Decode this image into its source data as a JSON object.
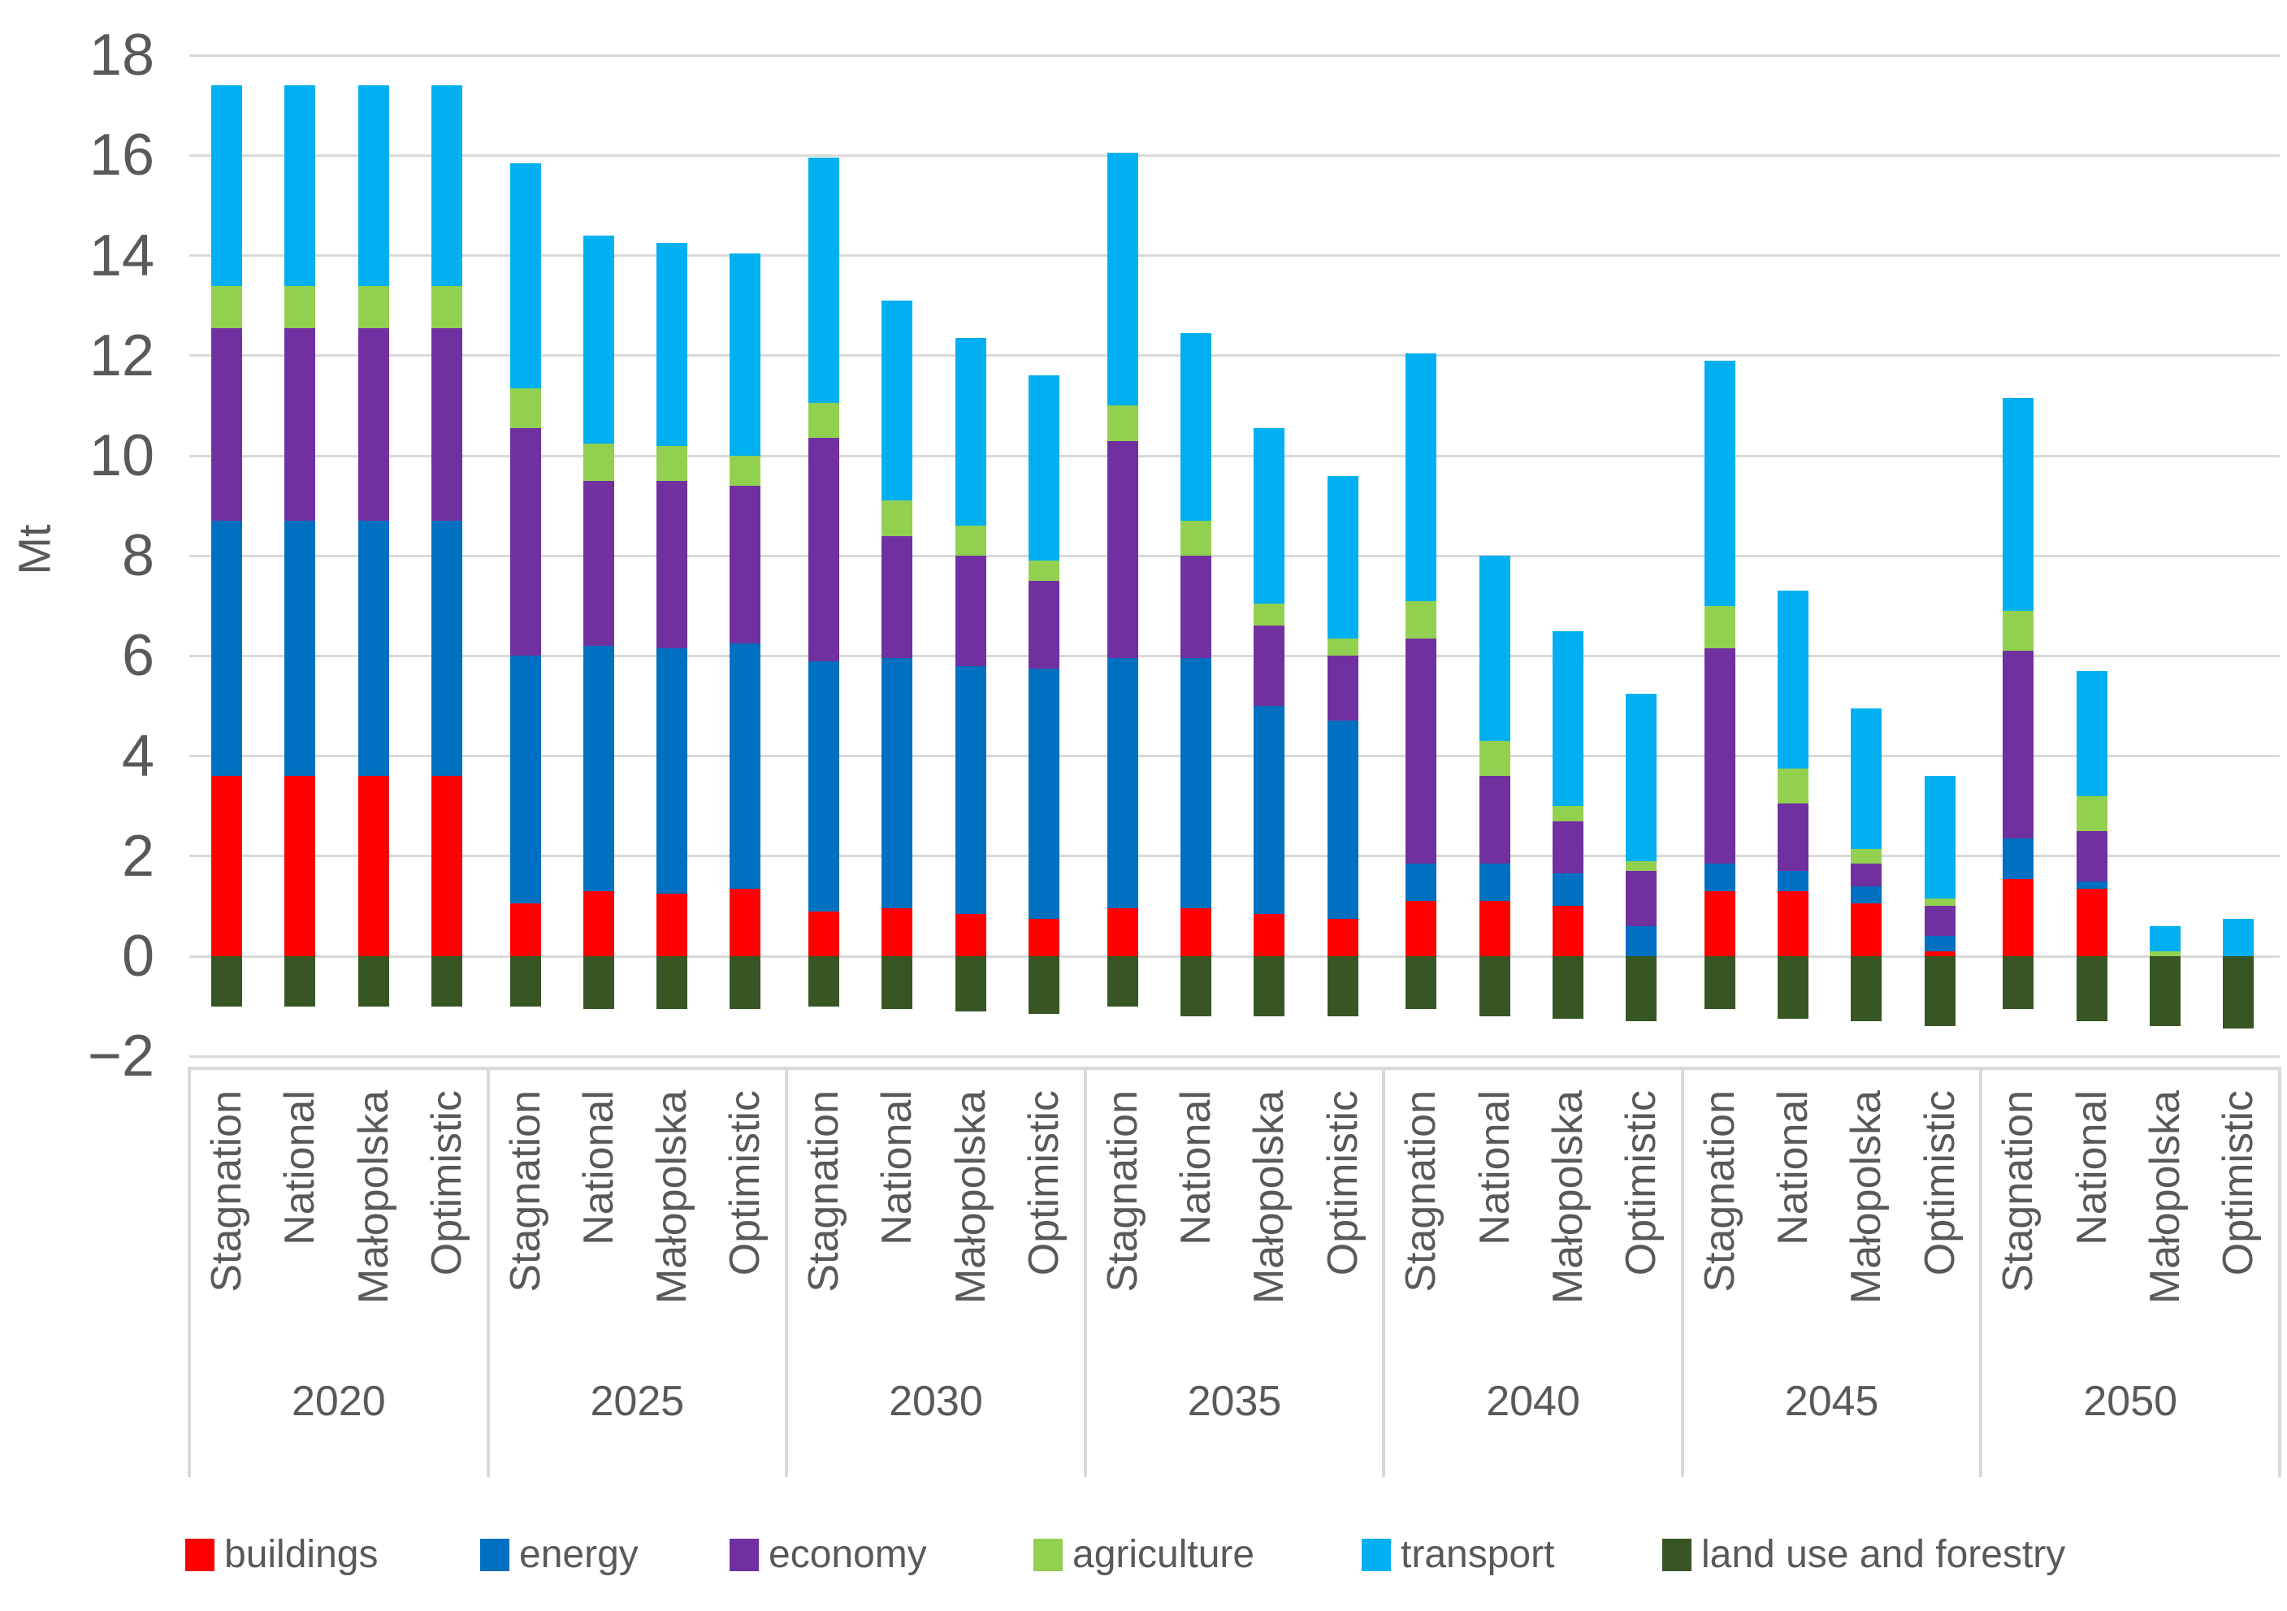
{
  "chart_data": {
    "type": "bar",
    "subtype": "stacked-column-with-negative",
    "title": "",
    "xlabel": "",
    "ylabel": "Mt",
    "ylim": [
      -2,
      18
    ],
    "ytick_step": 2,
    "yticks": [
      -2,
      0,
      2,
      4,
      6,
      8,
      10,
      12,
      14,
      16,
      18
    ],
    "grid": "horizontal",
    "legend_position": "bottom",
    "groups": [
      "2020",
      "2025",
      "2030",
      "2035",
      "2040",
      "2045",
      "2050"
    ],
    "scenarios": [
      "Stagnation",
      "National",
      "Małopolska",
      "Optimistic"
    ],
    "bar_order_note": "values arrays hold 28 bars: for each year group in order, the four scenarios Stagnation, National, Małopolska, Optimistic",
    "series": [
      {
        "name": "buildings",
        "color": "#ff0000",
        "values": [
          3.6,
          3.6,
          3.6,
          3.6,
          1.05,
          1.3,
          1.25,
          1.35,
          0.9,
          0.95,
          0.85,
          0.75,
          0.95,
          0.95,
          0.85,
          0.75,
          1.1,
          1.1,
          1.0,
          0,
          1.3,
          1.3,
          1.05,
          0.1,
          1.55,
          1.35,
          0,
          0
        ]
      },
      {
        "name": "energy",
        "color": "#0070c0",
        "values": [
          5.1,
          5.1,
          5.1,
          5.1,
          4.95,
          4.9,
          4.9,
          4.9,
          5.0,
          5.0,
          4.95,
          5.0,
          5.0,
          5.0,
          4.15,
          3.95,
          0.75,
          0.75,
          0.65,
          0.6,
          0.55,
          0.4,
          0.35,
          0.3,
          0.8,
          0.15,
          0,
          0
        ]
      },
      {
        "name": "economy",
        "color": "#7030a0",
        "values": [
          3.85,
          3.85,
          3.85,
          3.85,
          4.55,
          3.3,
          3.35,
          3.15,
          4.45,
          2.45,
          2.2,
          1.75,
          4.35,
          2.05,
          1.6,
          1.3,
          4.5,
          1.75,
          1.05,
          1.1,
          4.3,
          1.35,
          0.45,
          0.6,
          3.75,
          1.0,
          0,
          0
        ]
      },
      {
        "name": "agriculture",
        "color": "#92d050",
        "values": [
          0.85,
          0.85,
          0.85,
          0.85,
          0.8,
          0.75,
          0.7,
          0.6,
          0.7,
          0.7,
          0.6,
          0.4,
          0.7,
          0.7,
          0.45,
          0.35,
          0.75,
          0.7,
          0.3,
          0.2,
          0.85,
          0.7,
          0.3,
          0.15,
          0.8,
          0.7,
          0.1,
          0
        ]
      },
      {
        "name": "transport",
        "color": "#00b0f0",
        "values": [
          4.0,
          4.0,
          4.0,
          4.0,
          4.5,
          4.15,
          4.05,
          4.05,
          4.9,
          4.0,
          3.75,
          3.7,
          5.05,
          3.75,
          3.5,
          3.25,
          4.95,
          3.7,
          3.5,
          3.35,
          4.9,
          3.55,
          2.8,
          2.45,
          4.25,
          2.5,
          0.5,
          0.75
        ]
      },
      {
        "name": "land use and forestry",
        "color": "#375623",
        "values": [
          -1.0,
          -1.0,
          -1.0,
          -1.0,
          -1.0,
          -1.05,
          -1.05,
          -1.05,
          -1.0,
          -1.05,
          -1.1,
          -1.15,
          -1.0,
          -1.2,
          -1.2,
          -1.2,
          -1.05,
          -1.2,
          -1.25,
          -1.3,
          -1.05,
          -1.25,
          -1.3,
          -1.4,
          -1.05,
          -1.3,
          -1.4,
          -1.45
        ]
      }
    ],
    "colors": {
      "gridline": "#d9d9d9",
      "axis_text": "#595959"
    }
  }
}
